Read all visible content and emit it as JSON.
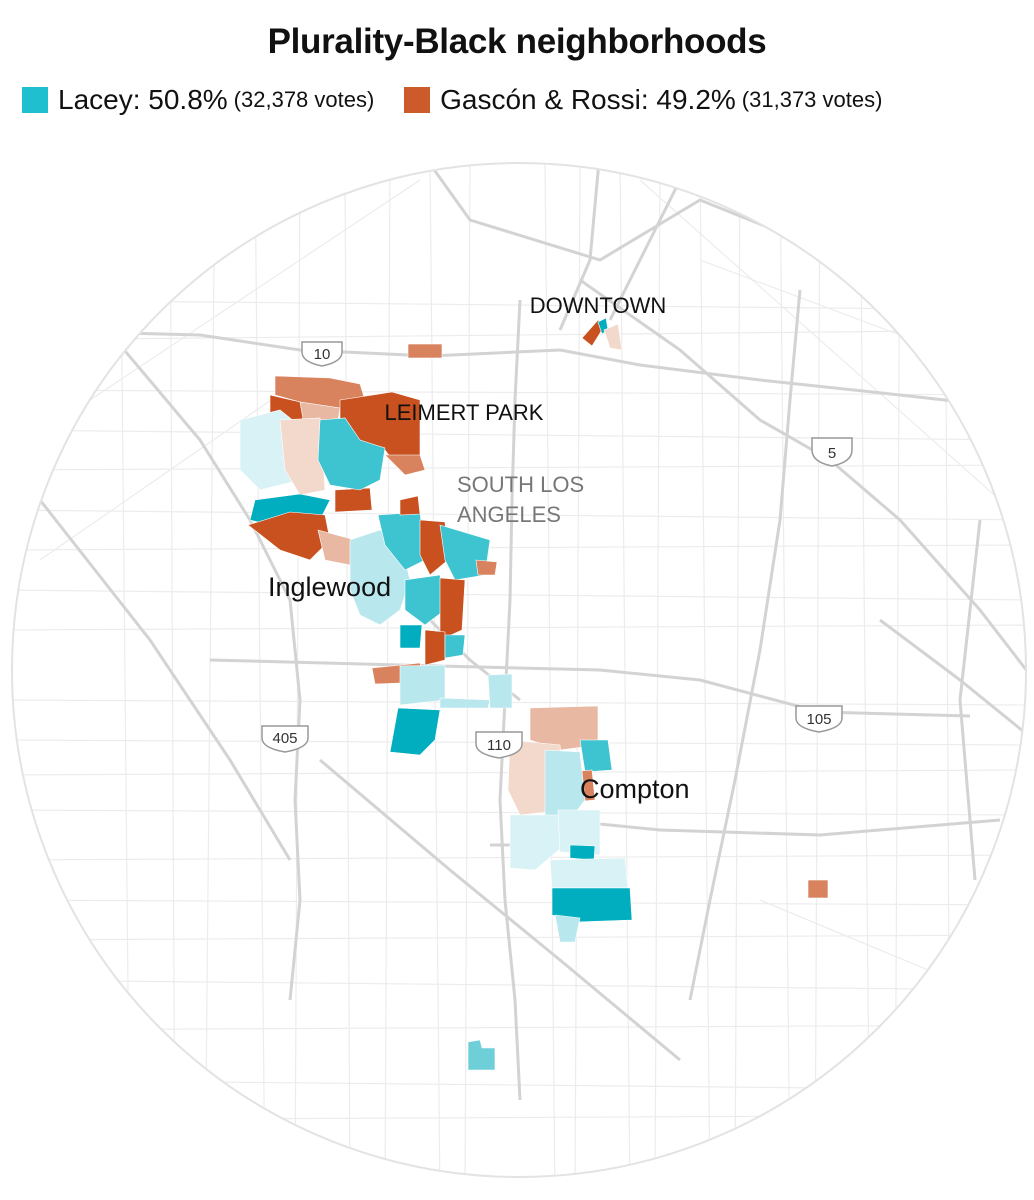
{
  "title": "Plurality-Black neighborhoods",
  "legend": [
    {
      "label": "Lacey: 50.8%",
      "votes": "(32,378 votes)",
      "color": "#1fbfcf"
    },
    {
      "label": "Gascón & Rossi: 49.2%",
      "votes": "(31,373 votes)",
      "color": "#cc5a2b"
    }
  ],
  "map_labels": {
    "downtown": "DOWNTOWN",
    "leimert_park": "LEIMERT PARK",
    "south_la_line1": "SOUTH LOS",
    "south_la_line2": "ANGELES",
    "inglewood": "Inglewood",
    "compton": "Compton"
  },
  "highways": {
    "i10": "10",
    "i5": "5",
    "i405": "405",
    "i110": "110",
    "i105": "105"
  },
  "colors": {
    "lacey_strong": "#00aebf",
    "lacey_mid": "#3ec3d1",
    "lacey_light": "#b9e7ee",
    "lacey_pale": "#d9f2f5",
    "gascon_strong": "#c9501f",
    "gascon_mid": "#d9825e",
    "gascon_light": "#e8b8a3",
    "gascon_pale": "#f3d8cc",
    "road": "#d5d5d5",
    "street": "#ececec",
    "circle_edge": "#e3e3e3"
  }
}
